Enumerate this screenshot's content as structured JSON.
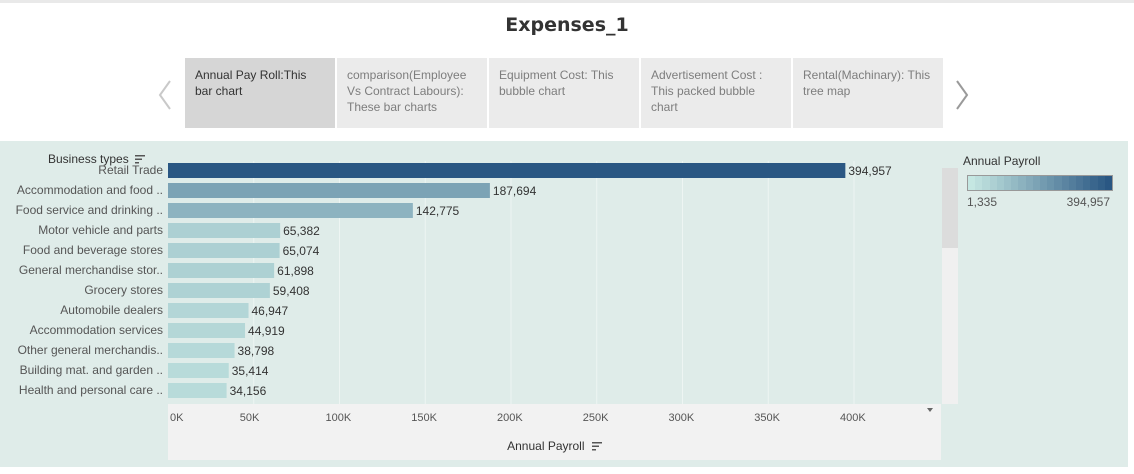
{
  "title": "Expenses_1",
  "story_points": [
    {
      "label": "Annual Pay Roll:This bar chart",
      "active": true
    },
    {
      "label": "comparison(Employee Vs Contract Labours): These bar charts",
      "active": false
    },
    {
      "label": "Equipment Cost: This bubble chart",
      "active": false
    },
    {
      "label": "Advertisement Cost : This packed bubble chart",
      "active": false
    },
    {
      "label": "Rental(Machinary): This tree map",
      "active": false
    }
  ],
  "nav": {
    "prev_icon": "chevron-left-icon",
    "next_icon": "chevron-right-icon"
  },
  "sheet": {
    "row_header": "Business types",
    "sort_icon": "sort-icon"
  },
  "legend": {
    "title": "Annual Payroll",
    "min_label": "1,335",
    "max_label": "394,957",
    "color_min": "#c5e7e2",
    "color_max": "#2a5783"
  },
  "chart_data": {
    "type": "bar",
    "orientation": "horizontal",
    "categories": [
      "Retail Trade",
      "Accommodation and food ..",
      "Food service and drinking ..",
      "Motor vehicle and parts",
      "Food and beverage stores",
      "General merchandise stor..",
      "Grocery stores",
      "Automobile dealers",
      "Accommodation services",
      "Other general merchandis..",
      "Building mat. and garden ..",
      "Health and personal care .."
    ],
    "values": [
      394957,
      187694,
      142775,
      65382,
      65074,
      61898,
      59408,
      46947,
      44919,
      38798,
      35414,
      34156
    ],
    "value_labels": [
      "394,957",
      "187,694",
      "142,775",
      "65,382",
      "65,074",
      "61,898",
      "59,408",
      "46,947",
      "44,919",
      "38,798",
      "35,414",
      "34,156"
    ],
    "xlabel": "Annual Payroll",
    "ylabel": "Business types",
    "xlim": [
      0,
      450000
    ],
    "xticks": [
      0,
      50000,
      100000,
      150000,
      200000,
      250000,
      300000,
      350000,
      400000
    ],
    "xtick_labels": [
      "0K",
      "50K",
      "100K",
      "150K",
      "200K",
      "250K",
      "300K",
      "350K",
      "400K"
    ],
    "grid": true,
    "color_scale": {
      "min": 1335,
      "max": 394957
    }
  }
}
